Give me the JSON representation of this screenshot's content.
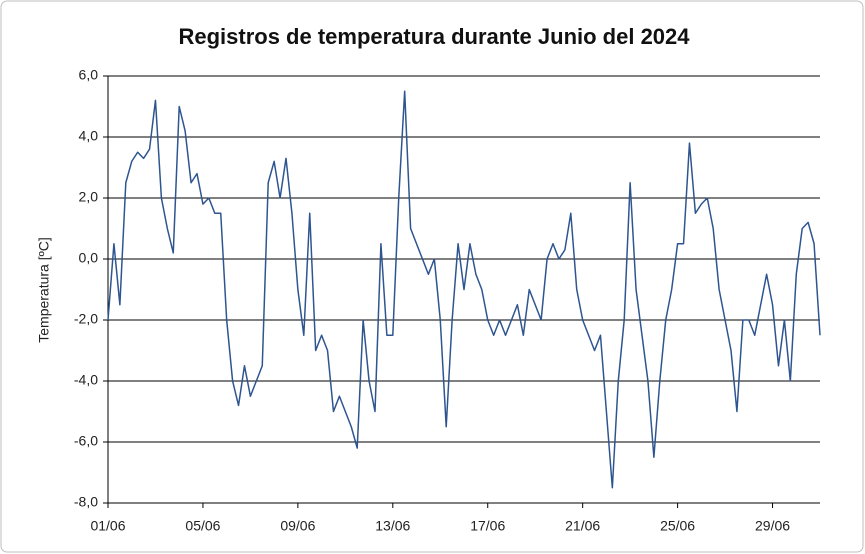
{
  "chart_data": {
    "type": "line",
    "title": "Registros de temperatura durante Junio del 2024",
    "ylabel": "Temperatura [ºC]",
    "xlim": [
      1,
      31
    ],
    "xticks": [
      {
        "value": 1,
        "label": "01/06"
      },
      {
        "value": 5,
        "label": "05/06"
      },
      {
        "value": 9,
        "label": "09/06"
      },
      {
        "value": 13,
        "label": "13/06"
      },
      {
        "value": 17,
        "label": "17/06"
      },
      {
        "value": 21,
        "label": "21/06"
      },
      {
        "value": 25,
        "label": "25/06"
      },
      {
        "value": 29,
        "label": "29/06"
      }
    ],
    "ylim": [
      -8,
      6
    ],
    "yticks": [
      {
        "value": -8,
        "label": "-8,0"
      },
      {
        "value": -6,
        "label": "-6,0"
      },
      {
        "value": -4,
        "label": "-4,0"
      },
      {
        "value": -2,
        "label": "-2,0"
      },
      {
        "value": 0,
        "label": "0,0"
      },
      {
        "value": 2,
        "label": "2,0"
      },
      {
        "value": 4,
        "label": "4,0"
      },
      {
        "value": 6,
        "label": "6,0"
      }
    ],
    "grid": true,
    "series": [
      {
        "color": "#2e5590",
        "x": [
          1,
          1.25,
          1.5,
          1.75,
          2,
          2.25,
          2.5,
          2.75,
          3,
          3.25,
          3.5,
          3.75,
          4,
          4.25,
          4.5,
          4.75,
          5,
          5.25,
          5.5,
          5.75,
          6,
          6.25,
          6.5,
          6.75,
          7,
          7.25,
          7.5,
          7.75,
          8,
          8.25,
          8.5,
          8.75,
          9,
          9.25,
          9.5,
          9.75,
          10,
          10.25,
          10.5,
          10.75,
          11,
          11.25,
          11.5,
          11.75,
          12,
          12.25,
          12.5,
          12.75,
          13,
          13.25,
          13.5,
          13.75,
          14,
          14.25,
          14.5,
          14.75,
          15,
          15.25,
          15.5,
          15.75,
          16,
          16.25,
          16.5,
          16.75,
          17,
          17.25,
          17.5,
          17.75,
          18,
          18.25,
          18.5,
          18.75,
          19,
          19.25,
          19.5,
          19.75,
          20,
          20.25,
          20.5,
          20.75,
          21,
          21.25,
          21.5,
          21.75,
          22,
          22.25,
          22.5,
          22.75,
          23,
          23.25,
          23.5,
          23.75,
          24,
          24.25,
          24.5,
          24.75,
          25,
          25.25,
          25.5,
          25.75,
          26,
          26.25,
          26.5,
          26.75,
          27,
          27.25,
          27.5,
          27.75,
          28,
          28.25,
          28.5,
          28.75,
          29,
          29.25,
          29.5,
          29.75,
          30,
          30.25,
          30.5,
          30.75,
          31
        ],
        "values": [
          -2.0,
          0.5,
          -1.5,
          2.5,
          3.2,
          3.5,
          3.3,
          3.6,
          5.2,
          2.0,
          1.0,
          0.2,
          5.0,
          4.2,
          2.5,
          2.8,
          1.8,
          2.0,
          1.5,
          1.5,
          -2.0,
          -4.0,
          -4.8,
          -3.5,
          -4.5,
          -4.0,
          -3.5,
          2.5,
          3.2,
          2.0,
          3.3,
          1.5,
          -1.0,
          -2.5,
          1.5,
          -3.0,
          -2.5,
          -3.0,
          -5.0,
          -4.5,
          -5.0,
          -5.5,
          -6.2,
          -2.0,
          -4.0,
          -5.0,
          0.5,
          -2.5,
          -2.5,
          2.0,
          5.5,
          1.0,
          0.5,
          0.0,
          -0.5,
          0.0,
          -2.0,
          -5.5,
          -2.0,
          0.5,
          -1.0,
          0.5,
          -0.5,
          -1.0,
          -2.0,
          -2.5,
          -2.0,
          -2.5,
          -2.0,
          -1.5,
          -2.5,
          -1.0,
          -1.5,
          -2.0,
          0.0,
          0.5,
          0.0,
          0.3,
          1.5,
          -1.0,
          -2.0,
          -2.5,
          -3.0,
          -2.5,
          -5.0,
          -7.5,
          -4.0,
          -2.0,
          2.5,
          -1.0,
          -2.5,
          -4.0,
          -6.5,
          -4.0,
          -2.0,
          -1.0,
          0.5,
          0.5,
          3.8,
          1.5,
          1.8,
          2.0,
          1.0,
          -1.0,
          -2.0,
          -3.0,
          -5.0,
          -2.0,
          -2.0,
          -2.5,
          -1.5,
          -0.5,
          -1.5,
          -3.5,
          -2.0,
          -4.0,
          -0.5,
          1.0,
          1.2,
          0.5,
          -2.5
        ]
      }
    ]
  }
}
